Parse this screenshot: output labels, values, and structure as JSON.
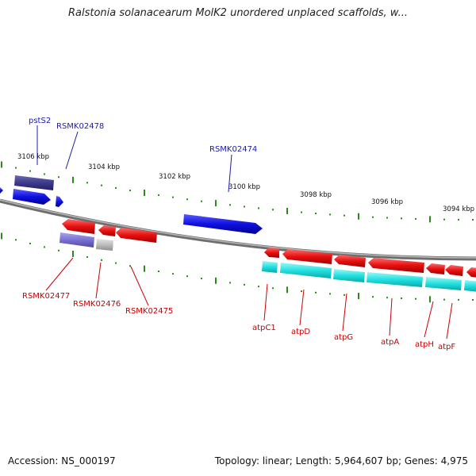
{
  "title": "Ralstonia solanacearum MolK2 unordered unplaced scaffolds, w...",
  "footer": {
    "accession": "Accession: NS_000197",
    "summary": "Topology: linear; Length: 5,964,607 bp; Genes: 4,975"
  },
  "colors": {
    "backbone": "#8c8c8c",
    "ticks": "#2a8a1a",
    "forward_gene": "#1010e0",
    "forward_gene_dark": "#3c3a8a",
    "forward_gene_light": "#7a72d0",
    "reverse_gene": "#e61010",
    "reverse_gene_alt": "#22e0e0",
    "pseudo_gray": "#bdbdbd",
    "label_forward": "#1a1ab0",
    "label_reverse": "#cc0000"
  },
  "scale_labels": [
    "3106 kbp",
    "3104 kbp",
    "3102 kbp",
    "3100 kbp",
    "3098 kbp",
    "3096 kbp",
    "3094 kbp"
  ],
  "forward_labels": [
    "pstS2",
    "RSMK02478",
    "RSMK02474"
  ],
  "reverse_labels": [
    "RSMK02477",
    "RSMK02476",
    "RSMK02475",
    "atpC1",
    "atpD",
    "atpG",
    "atpA",
    "atpH",
    "atpF"
  ]
}
